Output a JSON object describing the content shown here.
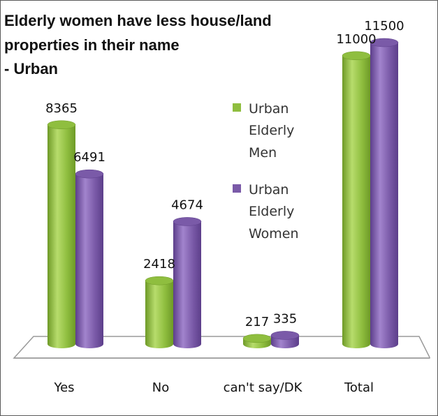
{
  "chart_data": {
    "type": "bar",
    "title_lines": [
      "Elderly women have less house/land",
      "properties in their name",
      "- Urban"
    ],
    "categories": [
      "Yes",
      "No",
      "can't say/DK",
      "Total"
    ],
    "series": [
      {
        "name_lines": [
          "Urban",
          "Elderly",
          "Men"
        ],
        "values": [
          8365,
          2418,
          217,
          11000
        ],
        "color": "#8fbe3f",
        "dark": "#6e9a27",
        "light": "#b7dc6c"
      },
      {
        "name_lines": [
          "Urban",
          "Elderly",
          "Women"
        ],
        "values": [
          6491,
          4674,
          335,
          11500
        ],
        "color": "#7a5aa8",
        "dark": "#5c3e8a",
        "light": "#a284cd"
      }
    ],
    "ylim": [
      0,
      11500
    ],
    "xlabel": "",
    "ylabel": "",
    "grid": false,
    "legend_position": "center-right",
    "style": "3d-cylinder"
  }
}
